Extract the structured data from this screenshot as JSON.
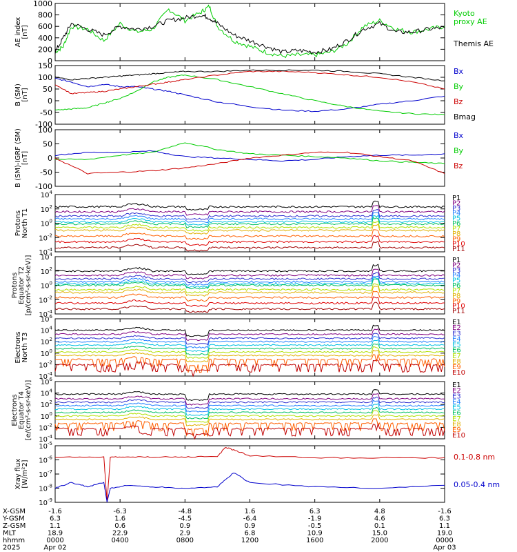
{
  "chart_data": [
    {
      "type": "line",
      "id": "ae",
      "ylabel": "AE index\n[nT]",
      "ylim": [
        0,
        1000
      ],
      "yticks": [
        "0",
        "200",
        "400",
        "600",
        "800",
        "1000"
      ],
      "series": [
        {
          "name": "Kyoto\nproxy AE",
          "color": "#00cc00",
          "x": [
            0,
            0.5,
            1,
            2,
            3,
            4,
            5,
            6,
            7,
            8,
            9,
            9.5,
            10,
            11,
            12,
            13,
            14,
            15,
            16,
            17,
            18,
            19,
            20,
            21,
            22,
            23,
            24
          ],
          "values": [
            150,
            250,
            600,
            550,
            350,
            650,
            500,
            550,
            900,
            700,
            850,
            950,
            600,
            350,
            250,
            150,
            80,
            100,
            100,
            150,
            300,
            600,
            700,
            550,
            500,
            550,
            600
          ]
        },
        {
          "name": "Themis AE",
          "color": "#000000",
          "x": [
            0,
            0.5,
            1,
            2,
            3,
            4,
            5,
            6,
            7,
            8,
            9,
            9.5,
            10,
            11,
            12,
            13,
            14,
            15,
            16,
            17,
            18,
            19,
            20,
            21,
            22,
            23,
            24
          ],
          "values": [
            150,
            400,
            650,
            550,
            450,
            600,
            550,
            600,
            700,
            750,
            800,
            750,
            650,
            450,
            350,
            250,
            150,
            180,
            150,
            200,
            350,
            550,
            650,
            500,
            500,
            550,
            580
          ]
        }
      ]
    },
    {
      "type": "line",
      "id": "bsm",
      "ylabel": "B (SM)\n[nT]",
      "ylim": [
        -100,
        150
      ],
      "yticks": [
        "-100",
        "-50",
        "0",
        "50",
        "100",
        "150"
      ],
      "series": [
        {
          "name": "Bx",
          "color": "#0000cc",
          "x": [
            0,
            1,
            2,
            3,
            4,
            5,
            6,
            7,
            8,
            10,
            12,
            14,
            16,
            18,
            20,
            22,
            24
          ],
          "values": [
            95,
            80,
            60,
            70,
            60,
            60,
            50,
            40,
            25,
            -5,
            -25,
            -40,
            -45,
            -35,
            -15,
            0,
            20
          ]
        },
        {
          "name": "By",
          "color": "#00cc00",
          "x": [
            0,
            1,
            2,
            3,
            4,
            5,
            6,
            7,
            8,
            10,
            12,
            14,
            16,
            18,
            20,
            22,
            24
          ],
          "values": [
            -40,
            -35,
            -30,
            -10,
            10,
            40,
            80,
            100,
            110,
            90,
            60,
            30,
            0,
            -25,
            -45,
            -55,
            -60
          ]
        },
        {
          "name": "Bz",
          "color": "#cc0000",
          "x": [
            0,
            1,
            2,
            3,
            4,
            5,
            6,
            7,
            8,
            10,
            12,
            14,
            16,
            18,
            20,
            22,
            24
          ],
          "values": [
            70,
            30,
            35,
            40,
            50,
            60,
            70,
            80,
            90,
            110,
            125,
            125,
            120,
            110,
            100,
            80,
            50
          ]
        },
        {
          "name": "Bmag",
          "color": "#000000",
          "x": [
            0,
            1,
            2,
            3,
            4,
            5,
            6,
            7,
            8,
            10,
            12,
            14,
            16,
            18,
            20,
            22,
            24
          ],
          "values": [
            100,
            90,
            95,
            100,
            105,
            110,
            115,
            120,
            125,
            125,
            130,
            130,
            130,
            125,
            115,
            100,
            85
          ]
        }
      ]
    },
    {
      "type": "line",
      "id": "bdiff",
      "ylabel": "B (SM)-IGRF (SM)\n[nT]",
      "ylim": [
        -100,
        100
      ],
      "yticks": [
        "-100",
        "-50",
        "0",
        "50",
        "100"
      ],
      "series": [
        {
          "name": "Bx",
          "color": "#0000cc",
          "x": [
            0,
            2,
            4,
            6,
            8,
            10,
            12,
            14,
            16,
            18,
            20,
            22,
            24
          ],
          "values": [
            10,
            20,
            20,
            25,
            5,
            0,
            -5,
            -10,
            -5,
            5,
            10,
            10,
            15
          ]
        },
        {
          "name": "By",
          "color": "#00cc00",
          "x": [
            0,
            2,
            4,
            6,
            8,
            10,
            12,
            14,
            16,
            18,
            20,
            22,
            24
          ],
          "values": [
            -5,
            -5,
            10,
            20,
            55,
            30,
            15,
            10,
            5,
            0,
            -10,
            -15,
            -20
          ]
        },
        {
          "name": "Bz",
          "color": "#cc0000",
          "x": [
            0,
            2,
            4,
            6,
            8,
            10,
            12,
            14,
            16,
            18,
            20,
            22,
            24
          ],
          "values": [
            0,
            -55,
            -50,
            -45,
            -35,
            -20,
            0,
            10,
            20,
            20,
            5,
            -10,
            -55
          ]
        }
      ]
    },
    {
      "type": "line",
      "id": "prot1",
      "ylabel": "Protons\nNorth T1",
      "log": true,
      "ylim_exp": [
        -4,
        4
      ],
      "yticks_exp": [
        -4,
        -2,
        0,
        2,
        4
      ],
      "channels": [
        "P1",
        "P2",
        "P3",
        "P4",
        "P5",
        "P6",
        "P7",
        "P8",
        "P9",
        "P10",
        "P11"
      ],
      "channel_colors": [
        "#000000",
        "#800080",
        "#3030d0",
        "#2080ff",
        "#00c0e0",
        "#00c060",
        "#b0e000",
        "#e0b000",
        "#ff6000",
        "#e00000",
        "#a00000"
      ],
      "levels": [
        2.3,
        1.6,
        1.0,
        0.6,
        0.2,
        -0.1,
        -0.6,
        -1.0,
        -1.8,
        -2.6,
        -3.4
      ]
    },
    {
      "type": "line",
      "id": "prot2",
      "ylabel": "Protons\nEquator T2\n[p/(cm²-s-sr-keV)]",
      "log": true,
      "ylim_exp": [
        -4,
        4
      ],
      "yticks_exp": [
        -4,
        -2,
        0,
        2,
        4
      ],
      "channels": [
        "P1",
        "P2",
        "P3",
        "P4",
        "P5",
        "P6",
        "P7",
        "P8",
        "P9",
        "P10",
        "P11"
      ],
      "channel_colors": [
        "#000000",
        "#800080",
        "#3030d0",
        "#2080ff",
        "#00c0e0",
        "#00c060",
        "#b0e000",
        "#e0b000",
        "#ff6000",
        "#e00000",
        "#a00000"
      ],
      "levels": [
        2.0,
        1.4,
        0.9,
        0.5,
        0.2,
        0.0,
        -0.6,
        -1.0,
        -1.7,
        -2.5,
        -3.3
      ]
    },
    {
      "type": "line",
      "id": "elec1",
      "ylabel": "Electrons\nNorth T3",
      "log": true,
      "ylim_exp": [
        -4,
        6
      ],
      "yticks_exp": [
        -4,
        -2,
        0,
        2,
        4,
        6
      ],
      "channels": [
        "E1",
        "E2",
        "E3",
        "E4",
        "E5",
        "E6",
        "E7",
        "E8",
        "E9",
        "E10"
      ],
      "channel_colors": [
        "#000000",
        "#800080",
        "#3030d0",
        "#2080ff",
        "#00c0e0",
        "#00c060",
        "#b0e000",
        "#e0b000",
        "#ff6000",
        "#c00000"
      ],
      "levels": [
        4.0,
        3.3,
        2.6,
        2.0,
        1.4,
        0.8,
        0.2,
        -0.4,
        -1.1,
        -2.0
      ]
    },
    {
      "type": "line",
      "id": "elec2",
      "ylabel": "Electrons\nEquator T4\n[e/(cm²-s-sr-keV)]",
      "log": true,
      "ylim_exp": [
        -4,
        6
      ],
      "yticks_exp": [
        -4,
        -2,
        0,
        2,
        4,
        6
      ],
      "channels": [
        "E1",
        "E2",
        "E3",
        "E4",
        "E5",
        "E6",
        "E7",
        "E8",
        "E9",
        "E10"
      ],
      "channel_colors": [
        "#000000",
        "#800080",
        "#3030d0",
        "#2080ff",
        "#00c0e0",
        "#00c060",
        "#b0e000",
        "#e0b000",
        "#ff6000",
        "#c00000"
      ],
      "levels": [
        3.8,
        3.0,
        2.4,
        1.8,
        1.2,
        0.6,
        0.0,
        -0.6,
        -1.3,
        -2.2
      ]
    },
    {
      "type": "line",
      "id": "xray",
      "ylabel": "Xray flux\n[W/m²2]",
      "log": true,
      "ylim_exp": [
        -9,
        -5
      ],
      "yticks_exp": [
        -9,
        -8,
        -7,
        -6,
        -5
      ],
      "series": [
        {
          "name": "0.1-0.8 nm",
          "color": "#cc0000",
          "x": [
            0,
            3,
            3.2,
            3.4,
            4.5,
            6,
            8,
            10,
            10.5,
            11,
            12,
            16,
            20,
            24
          ],
          "values": [
            -5.8,
            -5.8,
            -9,
            -5.8,
            -5.8,
            -5.8,
            -5.8,
            -5.75,
            -5.1,
            -5.3,
            -5.7,
            -5.85,
            -5.85,
            -5.85
          ]
        },
        {
          "name": "0.05-0.4 nm",
          "color": "#0000cc",
          "x": [
            0,
            1,
            2,
            3,
            3.2,
            3.4,
            4.5,
            6,
            8,
            10,
            11,
            12,
            16,
            20,
            24
          ],
          "values": [
            -8,
            -7.6,
            -7.9,
            -7.6,
            -9,
            -8.0,
            -7.8,
            -7.9,
            -8.0,
            -7.9,
            -6.9,
            -7.6,
            -7.9,
            -8.0,
            -7.8
          ]
        }
      ]
    }
  ],
  "xaxis": {
    "tick_hours": [
      0,
      4,
      8,
      12,
      16,
      20,
      24
    ],
    "rows": [
      {
        "label": "X-GSM",
        "values": [
          "-1.6",
          "-6.3",
          "-4.8",
          "1.6",
          "6.3",
          "4.8",
          "-1.6"
        ]
      },
      {
        "label": "Y-GSM",
        "values": [
          "6.3",
          "1.6",
          "-4.5",
          "-6.4",
          "-1.9",
          "4.6",
          "6.3"
        ]
      },
      {
        "label": "Z-GSM",
        "values": [
          "1.1",
          "0.6",
          "0.9",
          "0.9",
          "-0.5",
          "0.1",
          "1.1"
        ]
      },
      {
        "label": "MLT",
        "values": [
          "18.9",
          "22.9",
          "2.9",
          "6.8",
          "10.9",
          "15.0",
          "19.0"
        ]
      },
      {
        "label": "hhmm",
        "values": [
          "0000",
          "0400",
          "0800",
          "1200",
          "1600",
          "2000",
          "0000"
        ]
      },
      {
        "label": "2025",
        "values": [
          "Apr 02",
          "",
          "",
          "",
          "",
          "",
          "Apr 03"
        ]
      }
    ]
  }
}
